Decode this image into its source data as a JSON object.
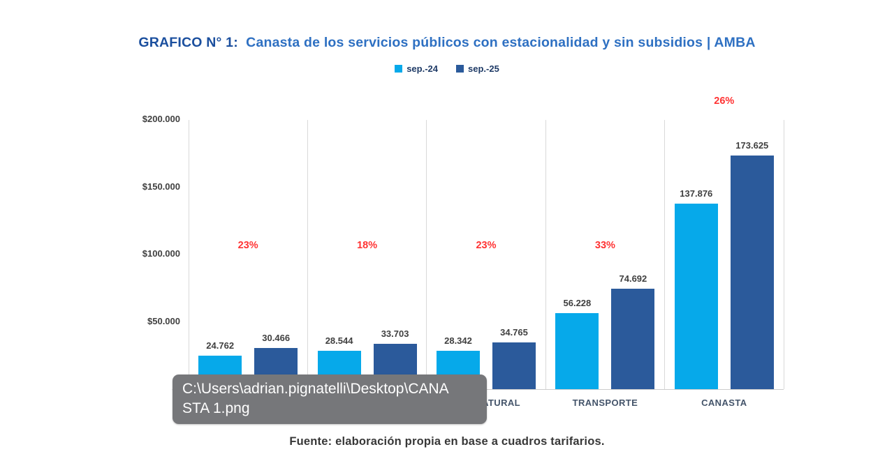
{
  "title": {
    "prefix": "GRAFICO N° 1:",
    "text": "Canasta de los servicios públicos con estacionalidad y sin subsidios | AMBA"
  },
  "legend": [
    {
      "label": "sep.-24",
      "color": "#06a9ea"
    },
    {
      "label": "sep.-25",
      "color": "#2b5a9b"
    }
  ],
  "chart_data": {
    "type": "bar",
    "categories": [
      "",
      "",
      "GAS NATURAL",
      "TRANSPORTE",
      "CANASTA"
    ],
    "series": [
      {
        "name": "sep.-24",
        "color": "#06a9ea",
        "values": [
          24762,
          28544,
          28342,
          56228,
          137876
        ],
        "labels": [
          "24.762",
          "28.544",
          "28.342",
          "56.228",
          "137.876"
        ]
      },
      {
        "name": "sep.-25",
        "color": "#2b5a9b",
        "values": [
          30466,
          33703,
          34765,
          74692,
          173625
        ],
        "labels": [
          "30.466",
          "33.703",
          "34.765",
          "74.692",
          "173.625"
        ]
      }
    ],
    "pct_labels": [
      "23%",
      "18%",
      "23%",
      "33%",
      "26%"
    ],
    "pct_color": "#ff3333",
    "y_axis": {
      "ticks": [
        {
          "value": 0,
          "label": "$-"
        },
        {
          "value": 50000,
          "label": "$50.000"
        },
        {
          "value": 100000,
          "label": "$100.000"
        },
        {
          "value": 150000,
          "label": "$150.000"
        },
        {
          "value": 200000,
          "label": "$200.000"
        }
      ],
      "ylim": [
        0,
        200000
      ]
    },
    "xlabel": "",
    "ylabel": "",
    "grid": "vertical category separators only",
    "legend_position": "top"
  },
  "tooltip": {
    "full_path": "C:\\Users\\adrian.pignatelli\\Desktop\\CANASTA 1.png",
    "path_lines": [
      "C:\\Users\\adrian.pignatelli\\Desktop\\CANA",
      "STA 1.png"
    ]
  },
  "footer": {
    "source": "Fuente: elaboración propia en base a cuadros tarifarios."
  },
  "colors": {
    "title_prefix": "#1b4f9e",
    "title_text": "#2e70c2",
    "series_1": "#06a9ea",
    "series_2": "#2b5a9b",
    "pct_red": "#ff3333",
    "tooltip_bg": "#76777a",
    "gridline": "#d9d9d9"
  }
}
